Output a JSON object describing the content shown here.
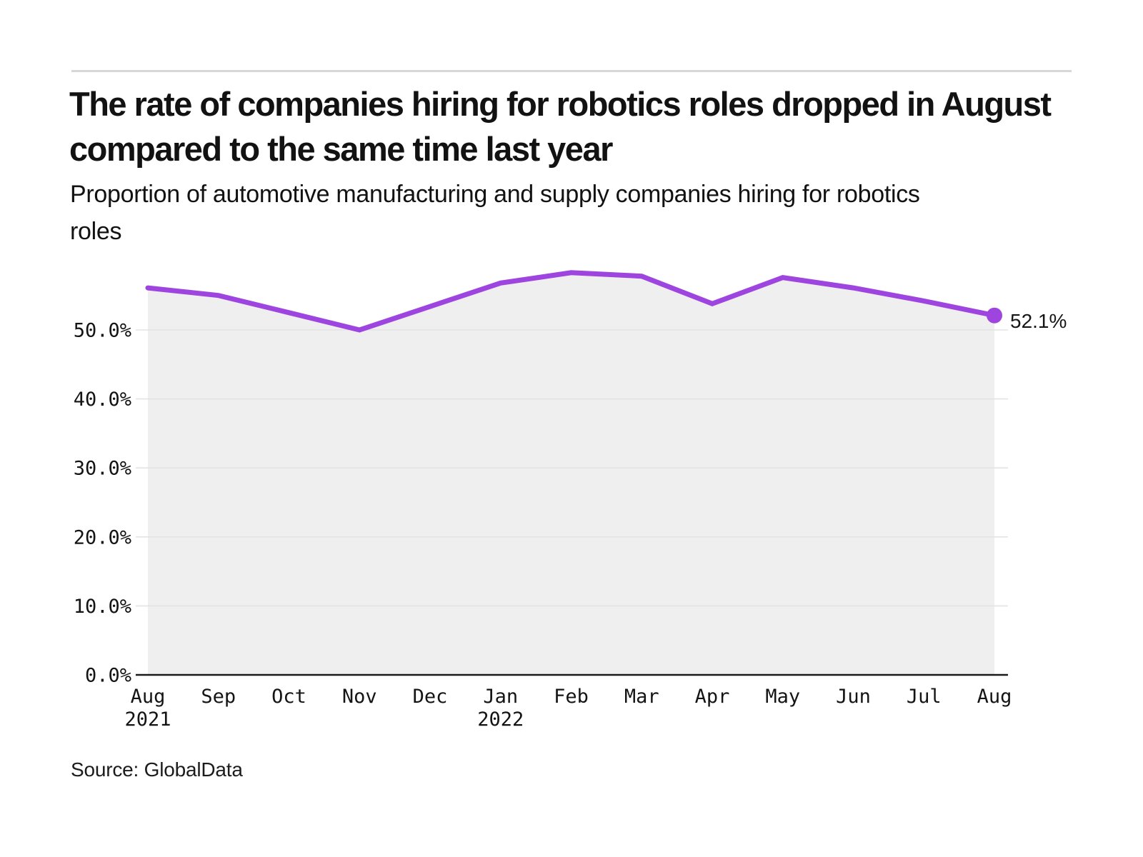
{
  "header": {
    "title": "The rate of companies hiring for robotics roles dropped in August compared to the same time last year",
    "subtitle": "Proportion of automotive manufacturing and supply companies hiring for robotics roles"
  },
  "footer": {
    "source": "Source: GlobalData"
  },
  "chart_data": {
    "type": "line",
    "title": "The rate of companies hiring for robotics roles dropped in August compared to the same time last year",
    "subtitle": "Proportion of automotive manufacturing and supply companies hiring for robotics roles",
    "categories": [
      {
        "month": "Aug",
        "year": "2021"
      },
      {
        "month": "Sep"
      },
      {
        "month": "Oct"
      },
      {
        "month": "Nov"
      },
      {
        "month": "Dec"
      },
      {
        "month": "Jan",
        "year": "2022"
      },
      {
        "month": "Feb"
      },
      {
        "month": "Mar"
      },
      {
        "month": "Apr"
      },
      {
        "month": "May"
      },
      {
        "month": "Jun"
      },
      {
        "month": "Jul"
      },
      {
        "month": "Aug"
      }
    ],
    "values": [
      56.1,
      55.0,
      52.5,
      50.0,
      53.4,
      56.8,
      58.3,
      57.8,
      53.8,
      57.6,
      56.1,
      54.2,
      52.1
    ],
    "end_label": "52.1%",
    "yticks": [
      {
        "value": 0,
        "label": "0.0%"
      },
      {
        "value": 10,
        "label": "10.0%"
      },
      {
        "value": 20,
        "label": "20.0%"
      },
      {
        "value": 30,
        "label": "30.0%"
      },
      {
        "value": 40,
        "label": "40.0%"
      },
      {
        "value": 50,
        "label": "50.0%"
      }
    ],
    "ylim": [
      0,
      60
    ],
    "grid": true,
    "legend_position": "none",
    "colors": {
      "line": "#9e45e0",
      "marker": "#9e45e0",
      "area_fill": "#efefef",
      "gridline": "#e3e3e3",
      "axis": "#1a1a1a",
      "tick_text": "#141414",
      "end_label_text": "#161616"
    }
  }
}
